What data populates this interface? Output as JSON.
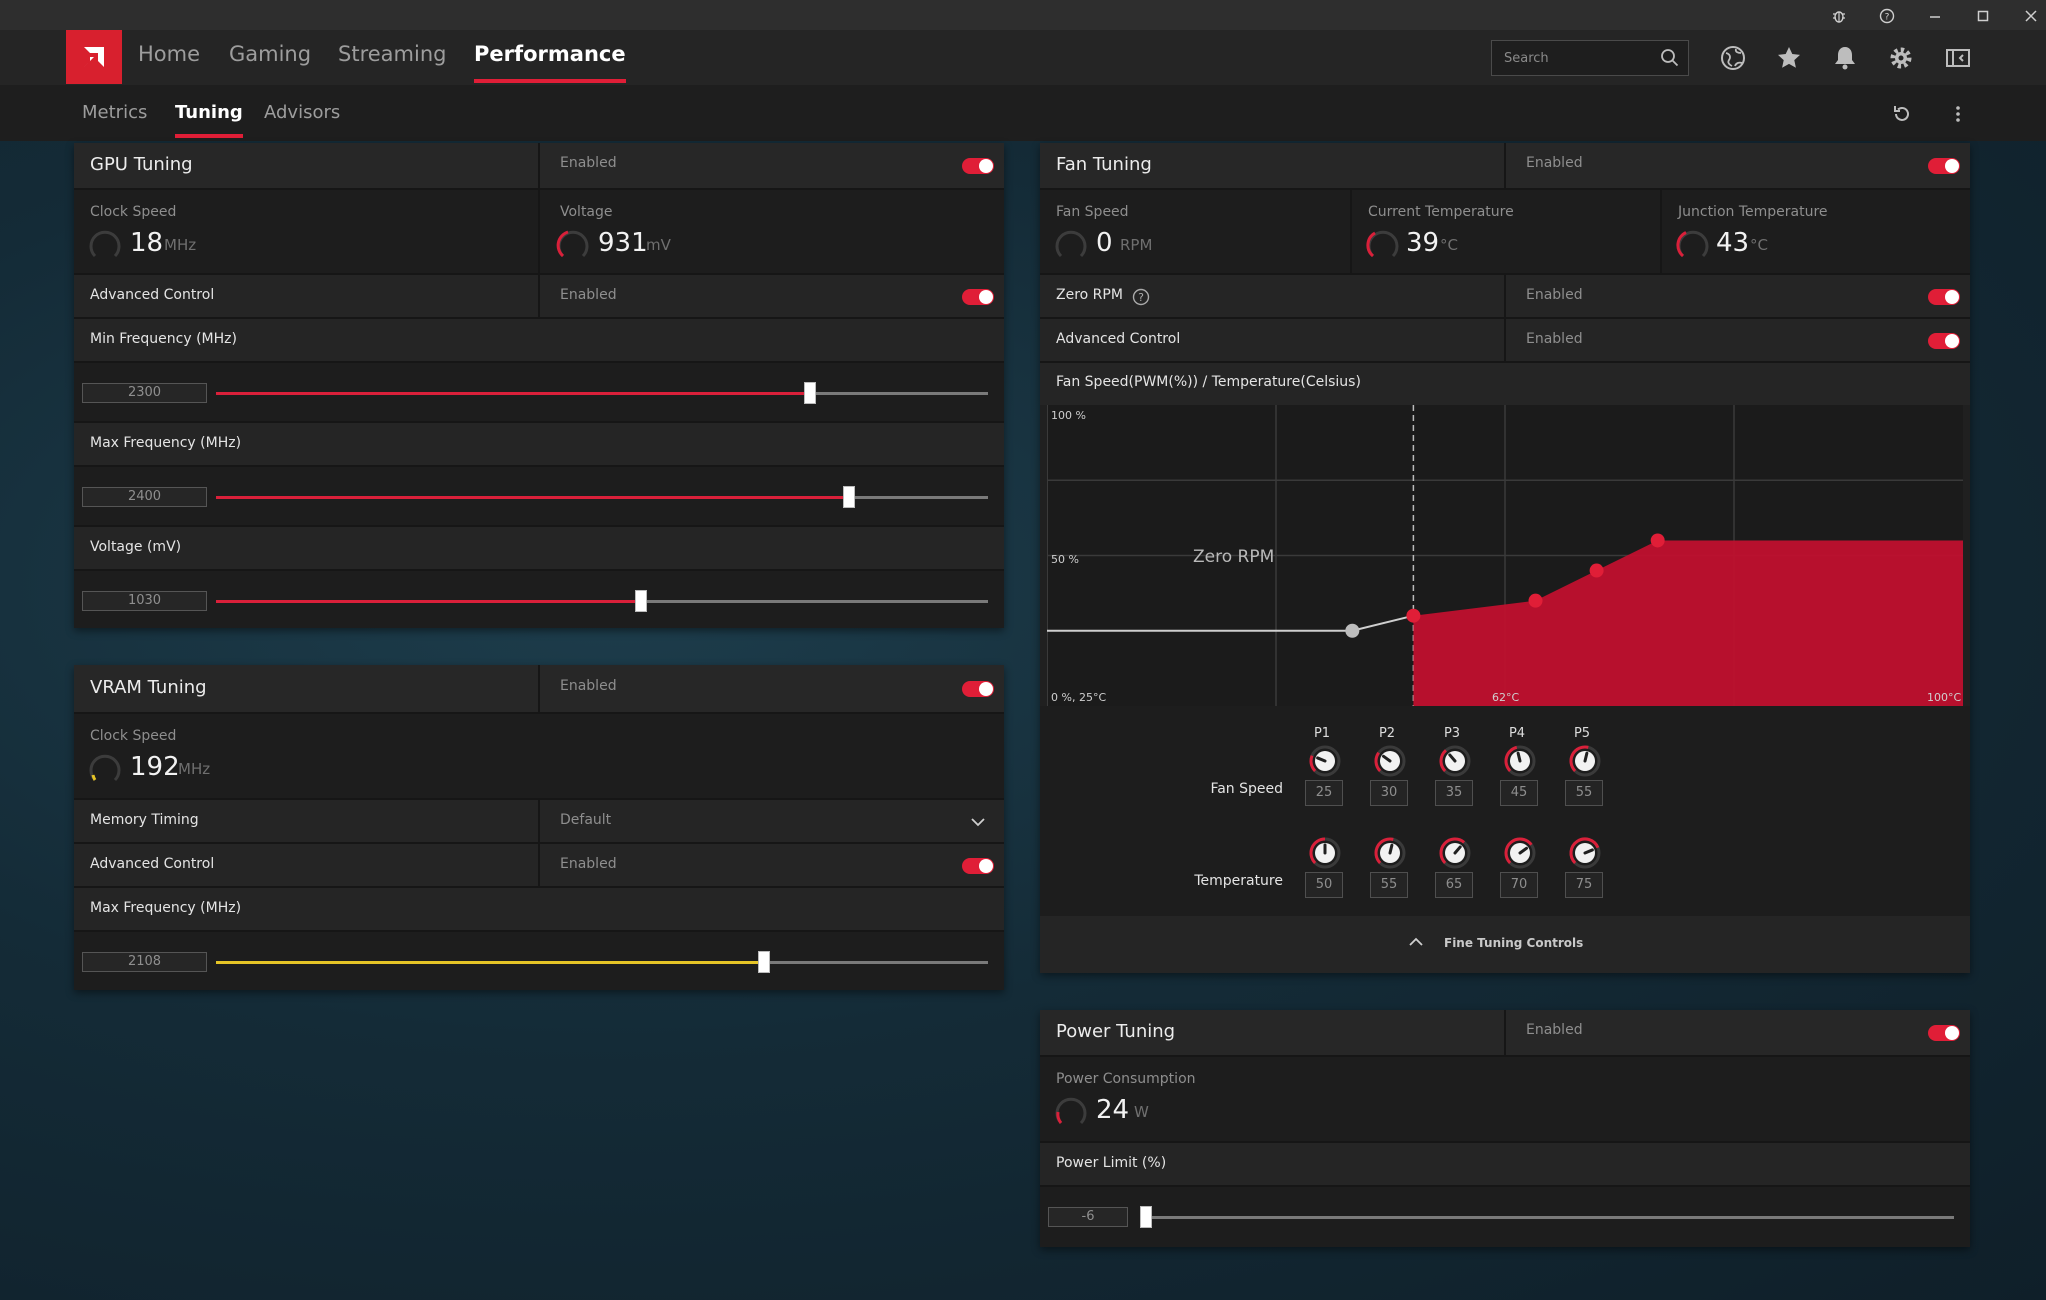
{
  "window": {
    "controls": [
      "bug-icon",
      "help-icon",
      "minimize-icon",
      "maximize-icon",
      "close-icon"
    ]
  },
  "nav": {
    "tabs": [
      "Home",
      "Gaming",
      "Streaming",
      "Performance"
    ],
    "active": "Performance",
    "search_placeholder": "Search",
    "icons": [
      "globe-icon",
      "star-icon",
      "bell-icon",
      "gear-icon",
      "sidebar-icon"
    ]
  },
  "subnav": {
    "tabs": [
      "Metrics",
      "Tuning",
      "Advisors"
    ],
    "active": "Tuning",
    "icons": [
      "reset-icon",
      "more-icon"
    ]
  },
  "colors": {
    "accent": "#e01e37",
    "vram_accent": "#e5c426",
    "panel": "#202020"
  },
  "gpu": {
    "title": "GPU Tuning",
    "state": "Enabled",
    "clock": {
      "label": "Clock Speed",
      "value": "18",
      "unit": "MHz"
    },
    "voltage": {
      "label": "Voltage",
      "value": "931",
      "unit": "mV"
    },
    "advanced": {
      "label": "Advanced Control",
      "state": "Enabled"
    },
    "min_freq": {
      "label": "Min Frequency (MHz)",
      "value": "2300",
      "fill": 0.77
    },
    "max_freq": {
      "label": "Max Frequency (MHz)",
      "value": "2400",
      "fill": 0.82
    },
    "volt_slider": {
      "label": "Voltage (mV)",
      "value": "1030",
      "fill": 0.55
    }
  },
  "vram": {
    "title": "VRAM Tuning",
    "state": "Enabled",
    "clock": {
      "label": "Clock Speed",
      "value": "192",
      "unit": "MHz"
    },
    "memory_timing": {
      "label": "Memory Timing",
      "value": "Default"
    },
    "advanced": {
      "label": "Advanced Control",
      "state": "Enabled"
    },
    "max_freq": {
      "label": "Max Frequency (MHz)",
      "value": "2108",
      "fill": 0.71
    }
  },
  "fan": {
    "title": "Fan Tuning",
    "state": "Enabled",
    "speed": {
      "label": "Fan Speed",
      "value": "0",
      "unit": "RPM"
    },
    "current_temp": {
      "label": "Current Temperature",
      "value": "39",
      "unit": "°C"
    },
    "junction_temp": {
      "label": "Junction Temperature",
      "value": "43",
      "unit": "°C"
    },
    "zero_rpm": {
      "label": "Zero RPM",
      "state": "Enabled"
    },
    "advanced": {
      "label": "Advanced Control",
      "state": "Enabled"
    },
    "curve_title": "Fan Speed(PWM(%)) / Temperature(Celsius)",
    "fine_tuning": "Fine Tuning Controls",
    "fan_speed_label": "Fan Speed",
    "temperature_label": "Temperature"
  },
  "chart_data": {
    "type": "area",
    "title": "Fan Speed(PWM(%)) / Temperature(Celsius)",
    "y_labels": [
      "100 %",
      "50 %",
      "0 %, 25°C"
    ],
    "x_labels": [
      "62°C",
      "100°C"
    ],
    "zero_rpm_label": "Zero RPM",
    "xlim": [
      25,
      100
    ],
    "ylim": [
      0,
      100
    ],
    "zero_rpm_temp": 55,
    "points": [
      {
        "name": "P1",
        "temp": 50,
        "speed": 25
      },
      {
        "name": "P2",
        "temp": 55,
        "speed": 30
      },
      {
        "name": "P3",
        "temp": 65,
        "speed": 35
      },
      {
        "name": "P4",
        "temp": 70,
        "speed": 45
      },
      {
        "name": "P5",
        "temp": 75,
        "speed": 55
      }
    ]
  },
  "power": {
    "title": "Power Tuning",
    "state": "Enabled",
    "consumption": {
      "label": "Power Consumption",
      "value": "24",
      "unit": "W"
    },
    "limit": {
      "label": "Power Limit (%)",
      "value": "-6",
      "fill": 0.0
    }
  }
}
